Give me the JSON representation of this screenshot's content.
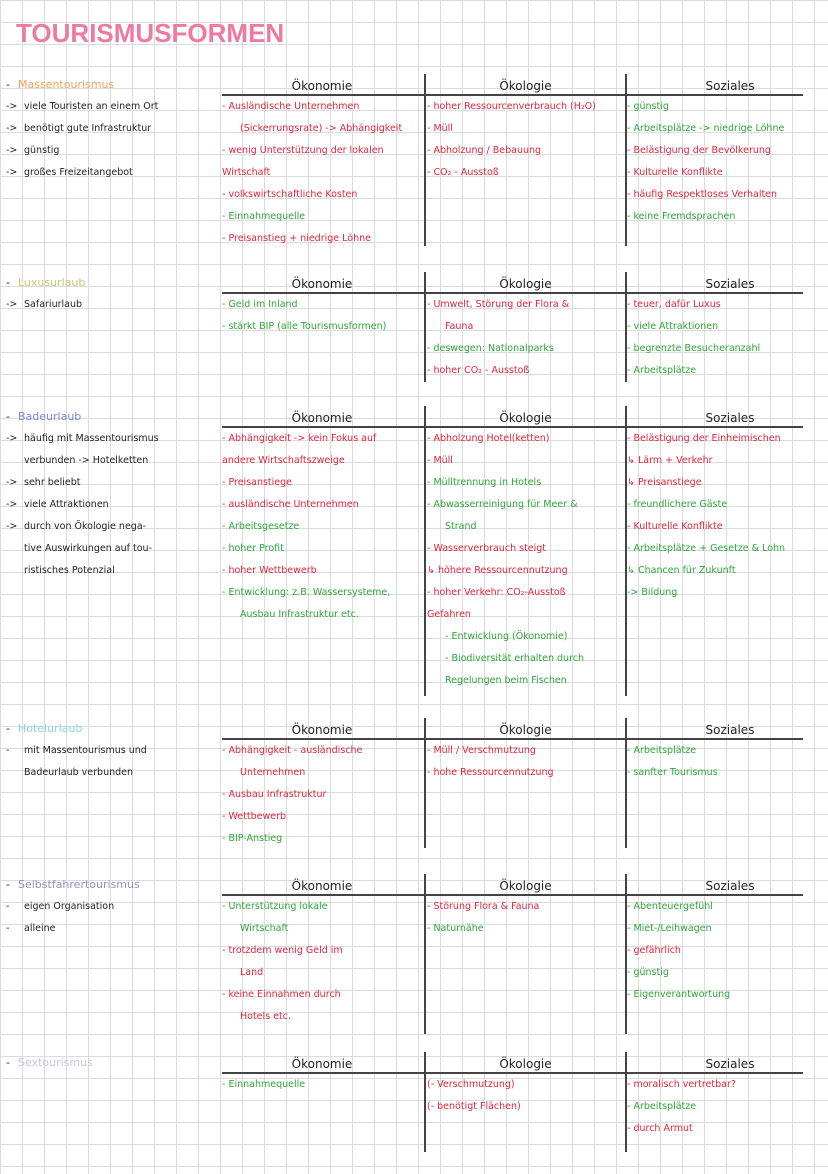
{
  "title": "TOURISMUSFORMEN",
  "colors": {
    "title": "#ee7aa3",
    "negative": "#e0263c",
    "positive": "#2ea63a"
  },
  "column_headers": {
    "eco": "Ökonomie",
    "oek": "Ökologie",
    "soz": "Soziales"
  },
  "sections": [
    {
      "name": "Massentourismus",
      "color": "#f2a35a",
      "notes": [
        {
          "prefix": "->",
          "text": "viele Touristen an einem Ort"
        },
        {
          "prefix": "->",
          "text": "benötigt gute Infrastruktur"
        },
        {
          "prefix": "->",
          "text": "günstig"
        },
        {
          "prefix": "->",
          "text": "großes Freizeitangebot"
        }
      ],
      "eco": [
        {
          "text": "- Ausländische Unternehmen",
          "tone": "red"
        },
        {
          "text": "(Sickerrungsrate) -> Abhängigkeit",
          "tone": "red",
          "indent": true
        },
        {
          "text": "- wenig Unterstützung der lokalen",
          "tone": "red"
        },
        {
          "text": "Wirtschaft",
          "tone": "red"
        },
        {
          "text": "- volkswirtschaftliche Kosten",
          "tone": "red"
        },
        {
          "text": "- Einnahmequelle",
          "tone": "green"
        },
        {
          "text": "- Preisanstieg + niedrige Löhne",
          "tone": "red"
        }
      ],
      "oek": [
        {
          "text": "- hoher Ressourcenverbrauch (H₂O)",
          "tone": "red"
        },
        {
          "text": "- Müll",
          "tone": "red"
        },
        {
          "text": "- Abholzung / Bebauung",
          "tone": "red"
        },
        {
          "text": "- CO₂ - Ausstoß",
          "tone": "red"
        }
      ],
      "soz": [
        {
          "text": "- günstig",
          "tone": "green"
        },
        {
          "text": "- Arbeitsplätze -> niedrige Löhne",
          "tone": "green"
        },
        {
          "text": "- Belästigung der Bevölkerung",
          "tone": "red"
        },
        {
          "text": "- Kulturelle Konflikte",
          "tone": "red"
        },
        {
          "text": "- häufig Respektloses Verhalten",
          "tone": "red"
        },
        {
          "text": "- keine Fremdsprachen",
          "tone": "green"
        }
      ]
    },
    {
      "name": "Luxusurlaub",
      "color": "#c8c77a",
      "notes": [
        {
          "prefix": "->",
          "text": "Safariurlaub"
        }
      ],
      "eco": [
        {
          "text": "- Geld im Inland",
          "tone": "green"
        },
        {
          "text": "- stärkt BIP (alle Tourismusformen)",
          "tone": "green"
        }
      ],
      "oek": [
        {
          "text": "- Umwelt, Störung der Flora &",
          "tone": "red"
        },
        {
          "text": "Fauna",
          "tone": "red",
          "indent": true
        },
        {
          "text": "- deswegen: Nationalparks",
          "tone": "green"
        },
        {
          "text": "- hoher CO₂ - Ausstoß",
          "tone": "red"
        }
      ],
      "soz": [
        {
          "text": "- teuer, dafür Luxus",
          "tone": "red"
        },
        {
          "text": "- viele Attraktionen",
          "tone": "green"
        },
        {
          "text": "- begrenzte Besucheranzahl",
          "tone": "green"
        },
        {
          "text": "- Arbeitsplätze",
          "tone": "green"
        }
      ]
    },
    {
      "name": "Badeurlaub",
      "color": "#7b86d6",
      "notes": [
        {
          "prefix": "->",
          "text": "häufig mit Massentourismus"
        },
        {
          "prefix": "",
          "text": "verbunden -> Hotelketten"
        },
        {
          "prefix": "->",
          "text": "sehr beliebt"
        },
        {
          "prefix": "->",
          "text": "viele Attraktionen"
        },
        {
          "prefix": "->",
          "text": "durch von Ökologie nega-"
        },
        {
          "prefix": "",
          "text": "tive Auswirkungen auf tou-"
        },
        {
          "prefix": "",
          "text": "ristisches Potenzial"
        }
      ],
      "eco": [
        {
          "text": "- Abhängigkeit -> kein Fokus auf",
          "tone": "red"
        },
        {
          "text": "andere Wirtschaftszweige",
          "tone": "red"
        },
        {
          "text": "- Preisanstiege",
          "tone": "red"
        },
        {
          "text": "- ausländische Unternehmen",
          "tone": "red"
        },
        {
          "text": "- Arbeitsgesetze",
          "tone": "green"
        },
        {
          "text": "- hoher Profit",
          "tone": "green"
        },
        {
          "text": "- hoher Wettbewerb",
          "tone": "red"
        },
        {
          "text": "- Entwicklung: z.B. Wassersysteme,",
          "tone": "green"
        },
        {
          "text": "Ausbau Infrastruktur etc.",
          "tone": "green",
          "indent": true
        }
      ],
      "oek": [
        {
          "text": "- Abholzung Hotel(ketten)",
          "tone": "red"
        },
        {
          "text": "- Müll",
          "tone": "red"
        },
        {
          "text": "- Mülltrennung in Hotels",
          "tone": "green"
        },
        {
          "text": "- Abwasserreinigung für Meer &",
          "tone": "green"
        },
        {
          "text": "Strand",
          "tone": "green",
          "indent": true
        },
        {
          "text": "- Wasserverbrauch steigt",
          "tone": "red"
        },
        {
          "text": "↳ höhere Ressourcennutzung",
          "tone": "red"
        },
        {
          "text": "- hoher Verkehr: CO₂-Ausstoß",
          "tone": "red"
        },
        {
          "text": "Gefahren",
          "tone": "red"
        },
        {
          "text": "- Entwicklung (Ökonomie)",
          "tone": "green",
          "indent": true
        },
        {
          "text": "- Biodiversität erhalten durch",
          "tone": "green",
          "indent": true
        },
        {
          "text": "Regelungen beim Fischen",
          "tone": "green",
          "indent": true
        }
      ],
      "soz": [
        {
          "text": "- Belästigung der Einheimischen",
          "tone": "red"
        },
        {
          "text": "↳ Lärm + Verkehr",
          "tone": "red"
        },
        {
          "text": "↳ Preisanstiege",
          "tone": "red"
        },
        {
          "text": "- freundlichere Gäste",
          "tone": "green"
        },
        {
          "text": "- Kulturelle Konflikte",
          "tone": "red"
        },
        {
          "text": "- Arbeitsplätze + Gesetze & Lohn",
          "tone": "green"
        },
        {
          "text": "↳ Chancen für Zukunft",
          "tone": "green"
        },
        {
          "text": "-> Bildung",
          "tone": "green"
        }
      ]
    },
    {
      "name": "Hotelurlaub",
      "color": "#8fd3e0",
      "notes": [
        {
          "prefix": "-",
          "text": "mit Massentourismus und"
        },
        {
          "prefix": "",
          "text": "Badeurlaub verbunden"
        }
      ],
      "eco": [
        {
          "text": "- Abhängigkeit - ausländische",
          "tone": "red"
        },
        {
          "text": "Unternehmen",
          "tone": "red",
          "indent": true
        },
        {
          "text": "- Ausbau Infrastruktur",
          "tone": "red"
        },
        {
          "text": "- Wettbewerb",
          "tone": "red"
        },
        {
          "text": "- BIP-Anstieg",
          "tone": "green"
        }
      ],
      "oek": [
        {
          "text": "- Müll / Verschmutzung",
          "tone": "red"
        },
        {
          "text": "- hohe Ressourcennutzung",
          "tone": "red"
        }
      ],
      "soz": [
        {
          "text": "- Arbeitsplätze",
          "tone": "green"
        },
        {
          "text": "- sanfter Tourismus",
          "tone": "green"
        }
      ]
    },
    {
      "name": "Selbstfahrertourismus",
      "color": "#9a8cc8",
      "notes": [
        {
          "prefix": "-",
          "text": "eigen Organisation"
        },
        {
          "prefix": "-",
          "text": "alleine"
        }
      ],
      "eco": [
        {
          "text": "- Unterstützung lokale",
          "tone": "green"
        },
        {
          "text": "Wirtschaft",
          "tone": "green",
          "indent": true
        },
        {
          "text": "- trotzdem wenig Geld im",
          "tone": "red"
        },
        {
          "text": "Land",
          "tone": "red",
          "indent": true
        },
        {
          "text": "- keine Einnahmen durch",
          "tone": "red"
        },
        {
          "text": "Hotels etc.",
          "tone": "red",
          "indent": true
        }
      ],
      "oek": [
        {
          "text": "- Störung Flora & Fauna",
          "tone": "red"
        },
        {
          "text": "- Naturnähe",
          "tone": "green"
        }
      ],
      "soz": [
        {
          "text": "- Abenteuergefühl",
          "tone": "green"
        },
        {
          "text": "- Miet-/Leihwagen",
          "tone": "green"
        },
        {
          "text": "- gefährlich",
          "tone": "red"
        },
        {
          "text": "- günstig",
          "tone": "green"
        },
        {
          "text": "- Eigenverantwortung",
          "tone": "green"
        }
      ]
    },
    {
      "name": "Sextourismus",
      "color": "#c9c4e6",
      "notes": [],
      "eco": [
        {
          "text": "- Einnahmequelle",
          "tone": "green"
        }
      ],
      "oek": [
        {
          "text": "(- Verschmutzung)",
          "tone": "red"
        },
        {
          "text": "(- benötigt Flächen)",
          "tone": "red"
        }
      ],
      "soz": [
        {
          "text": "- moralisch vertretbar?",
          "tone": "red"
        },
        {
          "text": "- Arbeitsplätze",
          "tone": "green"
        },
        {
          "text": "- durch Armut",
          "tone": "red"
        }
      ]
    }
  ]
}
